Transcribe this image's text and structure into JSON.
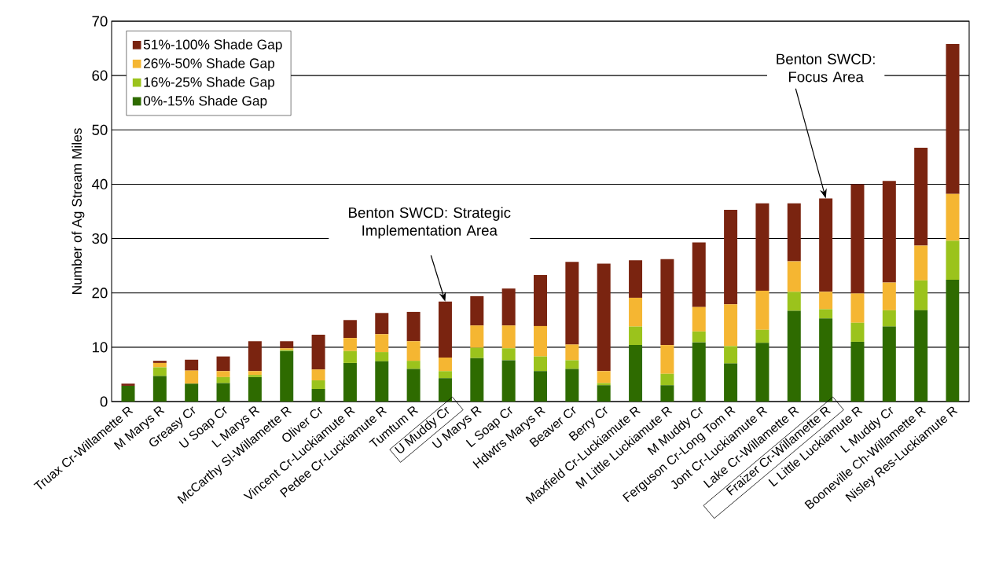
{
  "chart_data": {
    "type": "bar",
    "stacked": true,
    "ylabel": "Number of Ag Stream Miles",
    "categories": [
      "Truax Cr-Willamette R",
      "M Marys R",
      "Greasy Cr",
      "U Soap Cr",
      "L Marys R",
      "McCarthy Sl-Willamette R",
      "Oliver Cr",
      "Vincent Cr-Luckiamute R",
      "Pedee Cr-Luckiamute R",
      "Tumtum R",
      "U Muddy Cr",
      "U Marys R",
      "L Soap Cr",
      "Hdwtrs Marys R",
      "Beaver Cr",
      "Berry Cr",
      "Maxfield Cr-Luckiamute R",
      "M Little Luckiamute R",
      "M Muddy Cr",
      "Ferguson Cr-Long Tom R",
      "Jont Cr-Luckiamute R",
      "Lake Cr-Willamette R",
      "Fraizer Cr-Willamette R",
      "L Little Luckiamute R",
      "L Muddy Cr",
      "Booneville Ch-Willamette R",
      "Nisley Res-Luckiamute R"
    ],
    "series": [
      {
        "name": "0%-15% Shade Gap",
        "color": "#2e6b00",
        "values": [
          2.9,
          4.7,
          3.3,
          3.4,
          4.5,
          9.3,
          2.3,
          7.1,
          7.4,
          6.0,
          4.3,
          8.0,
          7.6,
          5.6,
          6.0,
          3.0,
          10.4,
          3.0,
          10.9,
          7.0,
          10.8,
          16.7,
          15.3,
          11.0,
          13.8,
          16.8,
          22.4
        ]
      },
      {
        "name": "16%-25% Shade Gap",
        "color": "#9bc31c",
        "values": [
          0,
          1.6,
          0,
          1.1,
          0.4,
          0.2,
          1.6,
          2.2,
          1.7,
          1.5,
          1.3,
          1.9,
          2.2,
          2.7,
          1.6,
          0.4,
          3.4,
          2.1,
          2.0,
          3.2,
          2.4,
          3.5,
          1.7,
          3.5,
          3.0,
          5.5,
          7.2
        ]
      },
      {
        "name": "26%-50% Shade Gap",
        "color": "#f5b632",
        "values": [
          0,
          0.8,
          2.4,
          1.1,
          0.7,
          0.3,
          2.0,
          2.4,
          3.3,
          3.6,
          2.5,
          4.1,
          4.2,
          5.6,
          2.9,
          2.2,
          5.3,
          5.3,
          4.5,
          7.7,
          7.2,
          5.6,
          3.2,
          5.4,
          5.1,
          6.4,
          8.6
        ]
      },
      {
        "name": "51%-100% Shade Gap",
        "color": "#7a2410",
        "values": [
          0.4,
          0.4,
          2.0,
          2.7,
          5.5,
          1.3,
          6.4,
          3.3,
          3.9,
          5.4,
          10.3,
          5.4,
          6.8,
          9.4,
          15.2,
          19.8,
          6.9,
          15.8,
          11.9,
          17.4,
          16.1,
          10.7,
          17.2,
          20.1,
          18.7,
          18.0,
          27.6
        ]
      }
    ],
    "ylim": [
      0,
      70
    ],
    "yticks": [
      0,
      10,
      20,
      30,
      40,
      50,
      60,
      70
    ],
    "grid": "y",
    "legend": "top left",
    "annotations": [
      {
        "text": "Benton SWCD:  Strategic Implementation Area",
        "x": "U Muddy Cr",
        "y": 18.4
      },
      {
        "text": "Benton SWCD: Focus Area",
        "x": "Fraizer Cr-Willamette R",
        "y": 37.4
      }
    ]
  }
}
